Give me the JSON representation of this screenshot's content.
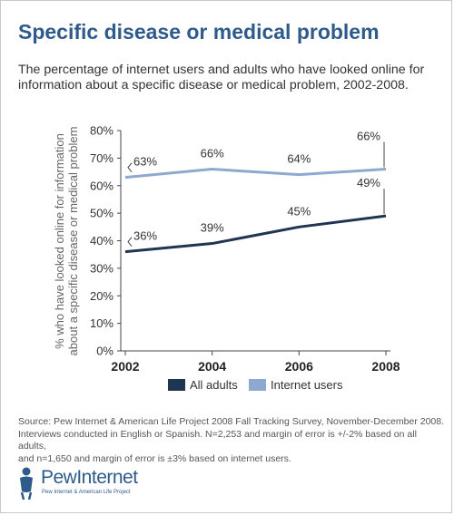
{
  "header": {
    "title": "Specific disease or medical problem",
    "subtitle": "The percentage of internet users and adults who have looked online for information about a specific disease or medical problem, 2002-2008."
  },
  "chart_data": {
    "type": "line",
    "x": [
      "2002",
      "2004",
      "2006",
      "2008"
    ],
    "ylabel_line1": "% who have looked online for information",
    "ylabel_line2": "about a specific disease or medical problem",
    "ylim": [
      0,
      80
    ],
    "yticks": [
      "0%",
      "10%",
      "20%",
      "30%",
      "40%",
      "50%",
      "60%",
      "70%",
      "80%"
    ],
    "grid": false,
    "legend_position": "bottom",
    "series": [
      {
        "name": "All adults",
        "values": [
          36,
          39,
          45,
          49
        ],
        "labels": [
          "36%",
          "39%",
          "45%",
          "49%"
        ],
        "color": "#1f3552"
      },
      {
        "name": "Internet users",
        "values": [
          63,
          66,
          64,
          66
        ],
        "labels": [
          "63%",
          "66%",
          "64%",
          "66%"
        ],
        "color": "#8ea9cf"
      }
    ]
  },
  "footer": {
    "source_line1": "Source:  Pew Internet & American Life Project 2008 Fall Tracking Survey, November-December 2008.",
    "source_line2": "Interviews conducted in English or Spanish.   N=2,253 and margin of error is +/-2% based on all adults,",
    "source_line3": "and n=1,650 and margin of error is ±3% based on internet users.",
    "logo_name": "PewInternet",
    "logo_tagline": "Pew Internet & American Life Project",
    "logo_color": "#2e5b8c"
  }
}
